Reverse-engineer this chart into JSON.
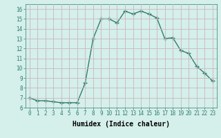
{
  "x": [
    0,
    1,
    2,
    3,
    4,
    5,
    6,
    7,
    8,
    9,
    10,
    11,
    12,
    13,
    14,
    15,
    16,
    17,
    18,
    19,
    20,
    21,
    22,
    23
  ],
  "y": [
    7.0,
    6.7,
    6.7,
    6.6,
    6.5,
    6.5,
    6.5,
    8.5,
    13.0,
    15.0,
    15.0,
    14.6,
    15.8,
    15.5,
    15.8,
    15.5,
    15.1,
    13.0,
    13.1,
    11.8,
    11.5,
    10.2,
    9.5,
    8.7
  ],
  "line_color": "#2e7d6e",
  "marker": "+",
  "marker_size": 4.0,
  "linewidth": 1.0,
  "bg_color": "#d5efeb",
  "grid_color": "#c8b8b8",
  "xlabel": "Humidex (Indice chaleur)",
  "xlim": [
    -0.5,
    23.5
  ],
  "ylim": [
    6,
    16.5
  ],
  "yticks": [
    6,
    7,
    8,
    9,
    10,
    11,
    12,
    13,
    14,
    15,
    16
  ],
  "xticks": [
    0,
    1,
    2,
    3,
    4,
    5,
    6,
    7,
    8,
    9,
    10,
    11,
    12,
    13,
    14,
    15,
    16,
    17,
    18,
    19,
    20,
    21,
    22,
    23
  ],
  "tick_fontsize": 5.5,
  "xlabel_fontsize": 7.0
}
